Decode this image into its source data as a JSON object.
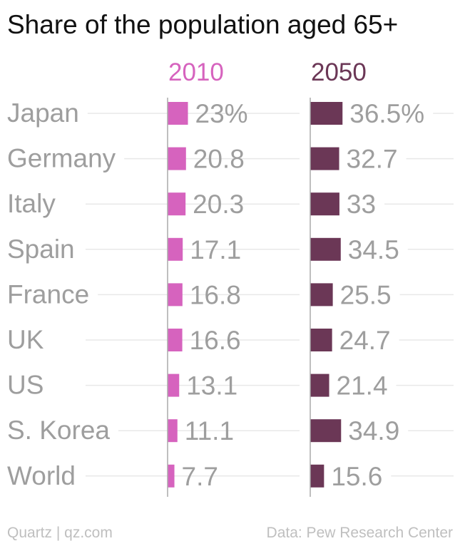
{
  "title": "Share of the population aged 65+",
  "footer": {
    "left": "Quartz | qz.com",
    "right": "Data: Pew Research Center"
  },
  "colors": {
    "series_2010": "#d663be",
    "series_2050": "#6b3756",
    "label_text": "#9e9e9e",
    "grid": "#e8e8e8",
    "axis": "#aaaaaa"
  },
  "chart_data": {
    "type": "bar",
    "categories": [
      "Japan",
      "Germany",
      "Italy",
      "Spain",
      "France",
      "UK",
      "US",
      "S. Korea",
      "World"
    ],
    "series": [
      {
        "name": "2010",
        "values": [
          23,
          20.8,
          20.3,
          17.1,
          16.8,
          16.6,
          13.1,
          11.1,
          7.7
        ],
        "labels": [
          "23%",
          "20.8",
          "20.3",
          "17.1",
          "16.8",
          "16.6",
          "13.1",
          "11.1",
          "7.7"
        ]
      },
      {
        "name": "2050",
        "values": [
          36.5,
          32.7,
          33,
          34.5,
          25.5,
          24.7,
          21.4,
          34.9,
          15.6
        ],
        "labels": [
          "36.5%",
          "32.7",
          "33",
          "34.5",
          "25.5",
          "24.7",
          "21.4",
          "34.9",
          "15.6"
        ]
      }
    ]
  }
}
